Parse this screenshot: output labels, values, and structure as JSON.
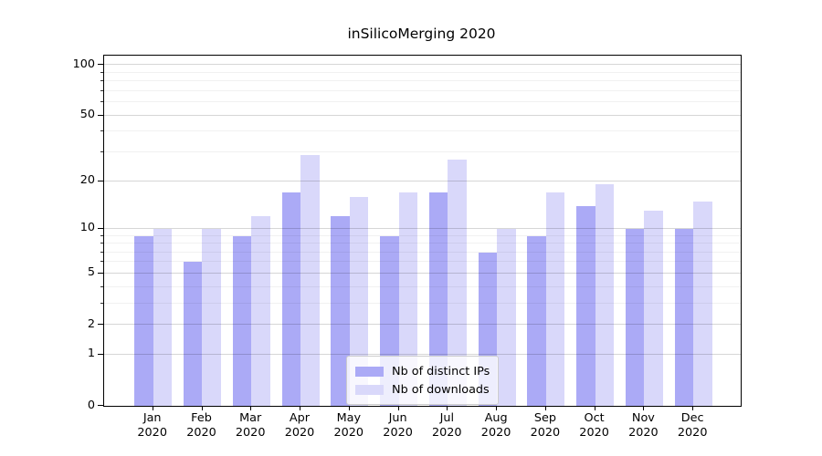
{
  "figure": {
    "title": "inSilicoMerging 2020"
  },
  "colors": {
    "ips_bar": "#abaaf6",
    "downloads_bar": "#d9d8fa",
    "spine": "#000000",
    "legend_border": "#cccccc",
    "legend_bg": "rgba(255,255,255,0.8)"
  },
  "legend": {
    "position": "lower center",
    "items": [
      {
        "label": "Nb of distinct IPs",
        "series_index": 0
      },
      {
        "label": "Nb of downloads",
        "series_index": 1
      }
    ]
  },
  "chart_data": {
    "type": "bar",
    "title": "inSilicoMerging 2020",
    "categories": [
      "Jan 2020",
      "Feb 2020",
      "Mar 2020",
      "Apr 2020",
      "May 2020",
      "Jun 2020",
      "Jul 2020",
      "Aug 2020",
      "Sep 2020",
      "Oct 2020",
      "Nov 2020",
      "Dec 2020"
    ],
    "series": [
      {
        "name": "Nb of distinct IPs",
        "color": "#abaaf6",
        "values": [
          9,
          6,
          9,
          17,
          12,
          9,
          17,
          7,
          9,
          14,
          10,
          10
        ]
      },
      {
        "name": "Nb of downloads",
        "color": "#d9d8fa",
        "values": [
          10,
          10,
          12,
          29,
          16,
          17,
          27,
          10,
          17,
          19,
          13,
          15
        ]
      }
    ],
    "xlabel": "",
    "ylabel": "",
    "yscale": "log10(1+x)",
    "ylim": [
      0,
      114
    ],
    "y_major_ticks": [
      0,
      1,
      2,
      5,
      10,
      20,
      50,
      100
    ],
    "y_minor_ticks": [
      3,
      4,
      6,
      7,
      8,
      9,
      30,
      40,
      60,
      70,
      80,
      90
    ],
    "grid": true,
    "legend_position": "lower center"
  }
}
